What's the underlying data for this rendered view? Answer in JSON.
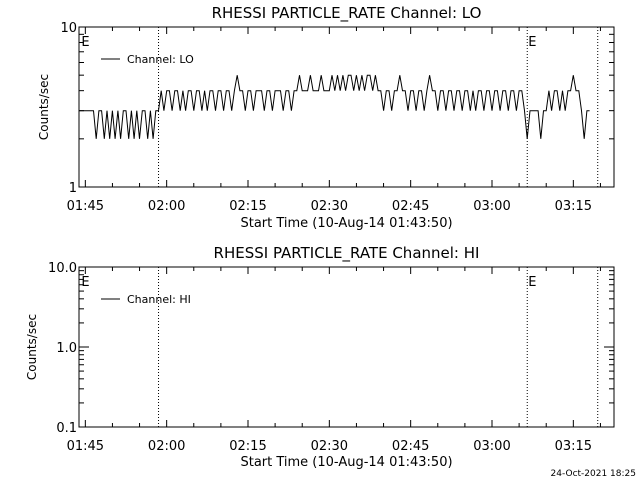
{
  "footer": {
    "timestamp": "24-Oct-2021 18:25"
  },
  "chart_data": [
    {
      "type": "line",
      "title": "RHESSI PARTICLE_RATE Channel: LO",
      "xlabel": "Start Time (10-Aug-14 01:43:50)",
      "ylabel": "Counts/sec",
      "yscale": "log",
      "ylim": [
        1,
        10
      ],
      "xlim": [
        "01:43:50",
        "03:22:30"
      ],
      "yticks": [
        "1",
        "10"
      ],
      "xticks": [
        "01:45",
        "02:00",
        "02:15",
        "02:30",
        "02:45",
        "03:00",
        "03:15"
      ],
      "legend": {
        "label": "Channel: LO",
        "placement": "top-left"
      },
      "markers": [
        {
          "label": "E",
          "time": "01:44:05"
        },
        {
          "label": "E",
          "time": "03:06:30"
        }
      ],
      "vlines": [
        "01:58:30",
        "03:06:30",
        "03:19:30"
      ],
      "series": [
        {
          "name": "Channel: LO",
          "x": [
            "01:43:50",
            "01:46:30",
            "01:47:00",
            "01:47:30",
            "01:48:00",
            "01:48:30",
            "01:49:00",
            "01:49:30",
            "01:50:00",
            "01:50:30",
            "01:51:00",
            "01:51:30",
            "01:52:00",
            "01:52:30",
            "01:53:00",
            "01:53:30",
            "01:54:00",
            "01:54:30",
            "01:55:00",
            "01:55:30",
            "01:56:00",
            "01:56:30",
            "01:57:00",
            "01:57:30",
            "01:58:00",
            "01:58:30",
            "01:59:00",
            "01:59:30",
            "02:00:00",
            "02:00:30",
            "02:01:00",
            "02:01:30",
            "02:02:00",
            "02:02:30",
            "02:03:00",
            "02:03:30",
            "02:04:00",
            "02:04:30",
            "02:05:00",
            "02:05:30",
            "02:06:00",
            "02:06:30",
            "02:07:00",
            "02:07:30",
            "02:08:00",
            "02:08:30",
            "02:09:00",
            "02:09:30",
            "02:10:00",
            "02:10:30",
            "02:11:00",
            "02:11:30",
            "02:12:00",
            "02:12:30",
            "02:13:00",
            "02:13:30",
            "02:14:00",
            "02:14:30",
            "02:15:00",
            "02:15:30",
            "02:16:00",
            "02:16:30",
            "02:17:00",
            "02:17:30",
            "02:18:00",
            "02:18:30",
            "02:19:00",
            "02:19:30",
            "02:20:00",
            "02:20:30",
            "02:21:00",
            "02:21:30",
            "02:22:00",
            "02:22:30",
            "02:23:00",
            "02:23:30",
            "02:24:00",
            "02:24:30",
            "02:25:00",
            "02:25:30",
            "02:26:00",
            "02:26:30",
            "02:27:00",
            "02:27:30",
            "02:28:00",
            "02:28:30",
            "02:29:00",
            "02:29:30",
            "02:30:00",
            "02:30:30",
            "02:31:00",
            "02:31:30",
            "02:32:00",
            "02:32:30",
            "02:33:00",
            "02:33:30",
            "02:34:00",
            "02:34:30",
            "02:35:00",
            "02:35:30",
            "02:36:00",
            "02:36:30",
            "02:37:00",
            "02:37:30",
            "02:38:00",
            "02:38:30",
            "02:39:00",
            "02:39:30",
            "02:40:00",
            "02:40:30",
            "02:41:00",
            "02:41:30",
            "02:42:00",
            "02:42:30",
            "02:43:00",
            "02:43:30",
            "02:44:00",
            "02:44:30",
            "02:45:00",
            "02:45:30",
            "02:46:00",
            "02:46:30",
            "02:47:00",
            "02:47:30",
            "02:48:00",
            "02:48:30",
            "02:49:00",
            "02:49:30",
            "02:50:00",
            "02:50:30",
            "02:51:00",
            "02:51:30",
            "02:52:00",
            "02:52:30",
            "02:53:00",
            "02:53:30",
            "02:54:00",
            "02:54:30",
            "02:55:00",
            "02:55:30",
            "02:56:00",
            "02:56:30",
            "02:57:00",
            "02:57:30",
            "02:58:00",
            "02:58:30",
            "02:59:00",
            "02:59:30",
            "03:00:00",
            "03:00:30",
            "03:01:00",
            "03:01:30",
            "03:02:00",
            "03:02:30",
            "03:03:00",
            "03:03:30",
            "03:04:00",
            "03:04:30",
            "03:05:00",
            "03:05:30",
            "03:06:00",
            "03:06:30",
            "03:07:00",
            "03:07:30",
            "03:08:00",
            "03:08:30",
            "03:09:00",
            "03:09:30",
            "03:10:00",
            "03:10:30",
            "03:11:00",
            "03:11:30",
            "03:12:00",
            "03:12:30",
            "03:13:00",
            "03:13:30",
            "03:14:00",
            "03:14:30",
            "03:15:00",
            "03:15:30",
            "03:16:00",
            "03:16:30",
            "03:17:00",
            "03:17:30",
            "03:18:00"
          ],
          "values": [
            3,
            3,
            2,
            3,
            3,
            2,
            3,
            2,
            3,
            2,
            3,
            2,
            3,
            3,
            2,
            3,
            2,
            3,
            2,
            3,
            3,
            2,
            3,
            2,
            3,
            3,
            4,
            3,
            4,
            4,
            3,
            4,
            4,
            3,
            4,
            3,
            4,
            4,
            3,
            4,
            4,
            3,
            4,
            3,
            4,
            4,
            3,
            4,
            4,
            3,
            4,
            4,
            3,
            4,
            5,
            4,
            4,
            3,
            4,
            4,
            3,
            4,
            4,
            4,
            3,
            4,
            4,
            3,
            4,
            4,
            4,
            3,
            4,
            4,
            3,
            4,
            4,
            5,
            4,
            4,
            4,
            5,
            4,
            4,
            4,
            5,
            4,
            4,
            4,
            5,
            4,
            5,
            4,
            5,
            4,
            5,
            5,
            4,
            5,
            4,
            5,
            4,
            5,
            5,
            4,
            5,
            4,
            4,
            3,
            4,
            4,
            3,
            4,
            4,
            5,
            4,
            4,
            3,
            4,
            4,
            3,
            4,
            4,
            3,
            4,
            5,
            4,
            4,
            3,
            4,
            4,
            3,
            4,
            4,
            3,
            4,
            4,
            3,
            4,
            4,
            3,
            4,
            3,
            4,
            4,
            3,
            4,
            4,
            3,
            4,
            4,
            3,
            4,
            4,
            3,
            4,
            4,
            3,
            4,
            4,
            3,
            2,
            3,
            3,
            3,
            3,
            2,
            3,
            3,
            4,
            3,
            4,
            4,
            3,
            4,
            3,
            4,
            4,
            5,
            4,
            4,
            3,
            2,
            3,
            3
          ]
        }
      ]
    },
    {
      "type": "line",
      "title": "RHESSI PARTICLE_RATE Channel: HI",
      "xlabel": "Start Time (10-Aug-14 01:43:50)",
      "ylabel": "Counts/sec",
      "yscale": "log",
      "ylim": [
        0.1,
        10
      ],
      "xlim": [
        "01:43:50",
        "03:22:30"
      ],
      "yticks": [
        "0.1",
        "1.0",
        "10.0"
      ],
      "xticks": [
        "01:45",
        "02:00",
        "02:15",
        "02:30",
        "02:45",
        "03:00",
        "03:15"
      ],
      "legend": {
        "label": "Channel: HI",
        "placement": "top-left"
      },
      "markers": [
        {
          "label": "E",
          "time": "01:44:05"
        },
        {
          "label": "E",
          "time": "03:06:30"
        }
      ],
      "vlines": [
        "01:58:30",
        "03:06:30",
        "03:19:30"
      ],
      "series": []
    }
  ]
}
